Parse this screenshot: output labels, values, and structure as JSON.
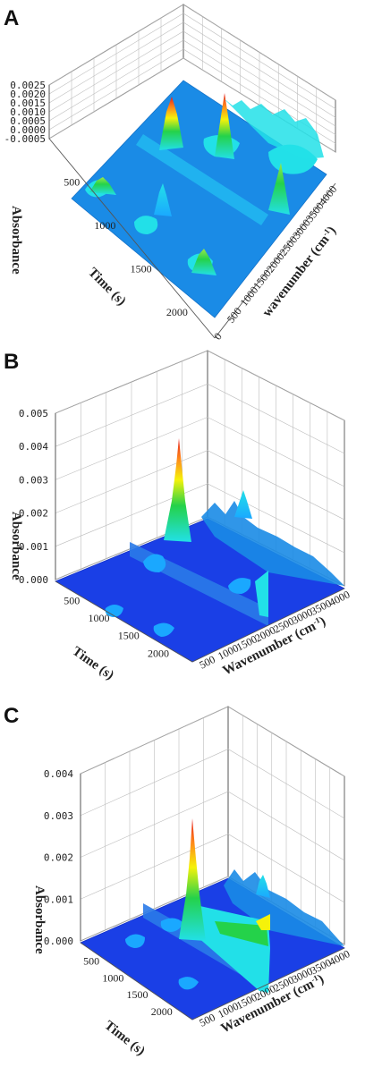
{
  "colors": {
    "base": "#1a4fe6",
    "low": "#1aa8ff",
    "mid": "#22e0e8",
    "green": "#24d24a",
    "yellow": "#f5f20a",
    "orange": "#ff8a1a",
    "red": "#e51a1a"
  },
  "chart_data": [
    {
      "type": "surface3d",
      "panel_label": "A",
      "zlabel": "Absorbance",
      "ylabel": "Time (s)",
      "xlabel": "wavenumber (cm",
      "xlabel_sup": "-1",
      "xlabel_end": ")",
      "zlim": [
        -0.0005,
        0.0025
      ],
      "z_ticks": [
        "0.0025",
        "0.0020",
        "0.0015",
        "0.0010",
        "0.0005",
        "0.0000",
        "-0.0005"
      ],
      "time_ticks": [
        "500",
        "1000",
        "1500",
        "2000"
      ],
      "wn_ticks": [
        "0",
        "500",
        "1000",
        "1500",
        "2000",
        "2500",
        "3000",
        "3500",
        "4000"
      ],
      "peaks": [
        {
          "wavenumber": 2360,
          "time": 400,
          "absorbance": 0.0024
        },
        {
          "wavenumber": 2360,
          "time": 1000,
          "absorbance": 0.0008
        },
        {
          "wavenumber": 3500,
          "time": 200,
          "absorbance": 0.0016
        },
        {
          "wavenumber": 1500,
          "time": 550,
          "absorbance": 0.0012
        },
        {
          "wavenumber": 700,
          "time": 400,
          "absorbance": 0.0008
        }
      ]
    },
    {
      "type": "surface3d",
      "panel_label": "B",
      "zlabel": "Absorbance",
      "ylabel": "Time (s)",
      "xlabel": "Wavenumber (cm",
      "xlabel_sup": "-1",
      "xlabel_end": ")",
      "zlim": [
        0,
        0.005
      ],
      "z_ticks": [
        "0.005",
        "0.004",
        "0.003",
        "0.002",
        "0.001",
        "0.000"
      ],
      "time_ticks": [
        "500",
        "1000",
        "1500",
        "2000"
      ],
      "wn_ticks": [
        "500",
        "1000",
        "1500",
        "2000",
        "2500",
        "3000",
        "3500",
        "4000"
      ],
      "peaks": [
        {
          "wavenumber": 2360,
          "time": 550,
          "absorbance": 0.0049
        },
        {
          "wavenumber": 700,
          "time": 400,
          "absorbance": 0.0014
        },
        {
          "wavenumber": 3700,
          "time": 300,
          "absorbance": 0.001
        }
      ]
    },
    {
      "type": "surface3d",
      "panel_label": "C",
      "zlabel": "Absorbance",
      "ylabel": "Time (s)",
      "xlabel": "Wavenumber (cm",
      "xlabel_sup": "-1",
      "xlabel_end": ")",
      "zlim": [
        0,
        0.004
      ],
      "z_ticks": [
        "0.004",
        "0.003",
        "0.002",
        "0.001",
        "0.000"
      ],
      "time_ticks": [
        "500",
        "1000",
        "1500",
        "2000"
      ],
      "wn_ticks": [
        "500",
        "1000",
        "1500",
        "2000",
        "2500",
        "3000",
        "3500",
        "4000"
      ],
      "peaks": [
        {
          "wavenumber": 2360,
          "time": 550,
          "absorbance": 0.0041
        },
        {
          "wavenumber": 700,
          "time": 400,
          "absorbance": 0.0019
        },
        {
          "wavenumber": 3700,
          "time": 300,
          "absorbance": 0.0009
        }
      ]
    }
  ]
}
